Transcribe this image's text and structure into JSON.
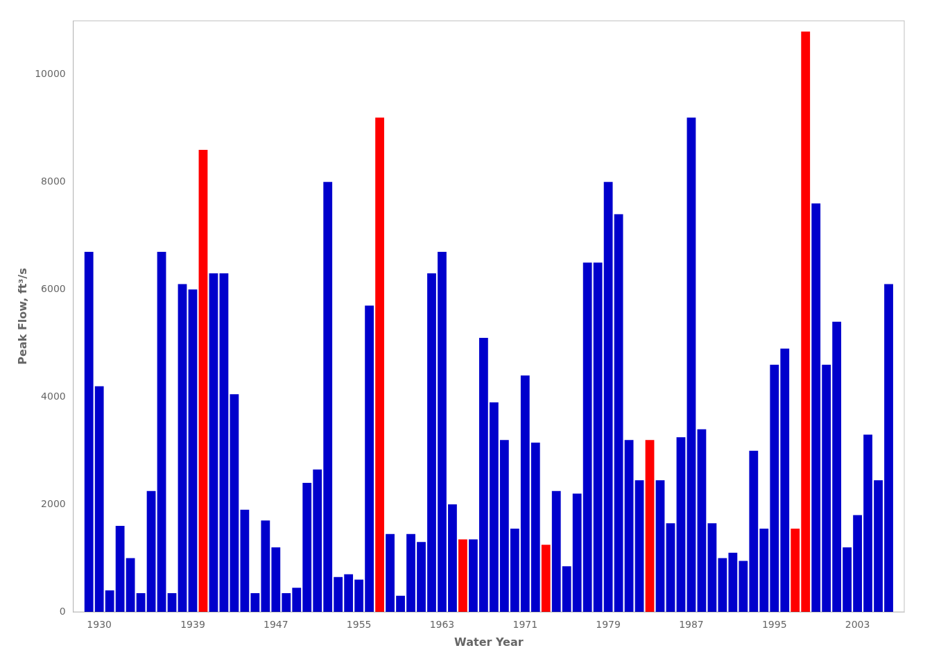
{
  "chart_data": {
    "type": "bar",
    "xlabel": "Water Year",
    "ylabel": "Peak Flow, ft³/s",
    "x": [
      1929,
      1930,
      1931,
      1932,
      1933,
      1934,
      1935,
      1936,
      1937,
      1938,
      1939,
      1940,
      1941,
      1942,
      1943,
      1944,
      1945,
      1946,
      1947,
      1948,
      1949,
      1950,
      1951,
      1952,
      1953,
      1954,
      1955,
      1956,
      1957,
      1958,
      1959,
      1960,
      1961,
      1962,
      1963,
      1964,
      1965,
      1966,
      1967,
      1968,
      1969,
      1970,
      1971,
      1972,
      1973,
      1974,
      1975,
      1976,
      1977,
      1978,
      1979,
      1980,
      1981,
      1982,
      1983,
      1984,
      1985,
      1986,
      1987,
      1988,
      1989,
      1990,
      1991,
      1992,
      1993,
      1994,
      1995,
      1996,
      1997,
      1998,
      1999,
      2000,
      2001,
      2002,
      2003,
      2004,
      2005,
      2006
    ],
    "values": [
      6700,
      4200,
      400,
      1600,
      1000,
      350,
      2250,
      6700,
      350,
      6100,
      6000,
      8600,
      6300,
      6300,
      4050,
      1900,
      350,
      1700,
      1200,
      350,
      450,
      2400,
      2650,
      8000,
      650,
      700,
      600,
      5700,
      9200,
      1450,
      300,
      1450,
      1300,
      6300,
      6700,
      2000,
      1350,
      1350,
      5100,
      3900,
      3200,
      1550,
      4400,
      3150,
      1250,
      2250,
      850,
      2200,
      6500,
      6500,
      8000,
      7400,
      3200,
      2450,
      3200,
      2450,
      1650,
      3250,
      9200,
      3400,
      1650,
      1000,
      1100,
      950,
      3000,
      1550,
      4600,
      4900,
      1550,
      10800,
      7600,
      4600,
      5400,
      1200,
      1800,
      3300,
      2450,
      6100
    ],
    "colors": [
      "#0000cc",
      "#0000cc",
      "#0000cc",
      "#0000cc",
      "#0000cc",
      "#0000cc",
      "#0000cc",
      "#0000cc",
      "#0000cc",
      "#0000cc",
      "#0000cc",
      "#ff0000",
      "#0000cc",
      "#0000cc",
      "#0000cc",
      "#0000cc",
      "#0000cc",
      "#0000cc",
      "#0000cc",
      "#0000cc",
      "#0000cc",
      "#0000cc",
      "#0000cc",
      "#0000cc",
      "#0000cc",
      "#0000cc",
      "#0000cc",
      "#0000cc",
      "#ff0000",
      "#0000cc",
      "#0000cc",
      "#0000cc",
      "#0000cc",
      "#0000cc",
      "#0000cc",
      "#0000cc",
      "#ff0000",
      "#0000cc",
      "#0000cc",
      "#0000cc",
      "#0000cc",
      "#0000cc",
      "#0000cc",
      "#0000cc",
      "#ff0000",
      "#0000cc",
      "#0000cc",
      "#0000cc",
      "#0000cc",
      "#0000cc",
      "#0000cc",
      "#0000cc",
      "#0000cc",
      "#0000cc",
      "#ff0000",
      "#0000cc",
      "#0000cc",
      "#0000cc",
      "#0000cc",
      "#0000cc",
      "#0000cc",
      "#0000cc",
      "#0000cc",
      "#0000cc",
      "#0000cc",
      "#0000cc",
      "#0000cc",
      "#0000cc",
      "#ff0000",
      "#ff0000",
      "#0000cc",
      "#0000cc",
      "#0000cc",
      "#0000cc",
      "#0000cc",
      "#0000cc",
      "#0000cc",
      "#0000cc"
    ],
    "xlim": [
      1927.5,
      2007.5
    ],
    "xticks": [
      1930,
      1939,
      1947,
      1955,
      1963,
      1971,
      1979,
      1987,
      1995,
      2003
    ],
    "ylim": [
      0,
      11000
    ],
    "yticks": [
      0,
      2000,
      4000,
      6000,
      8000,
      10000
    ],
    "grid": false
  }
}
